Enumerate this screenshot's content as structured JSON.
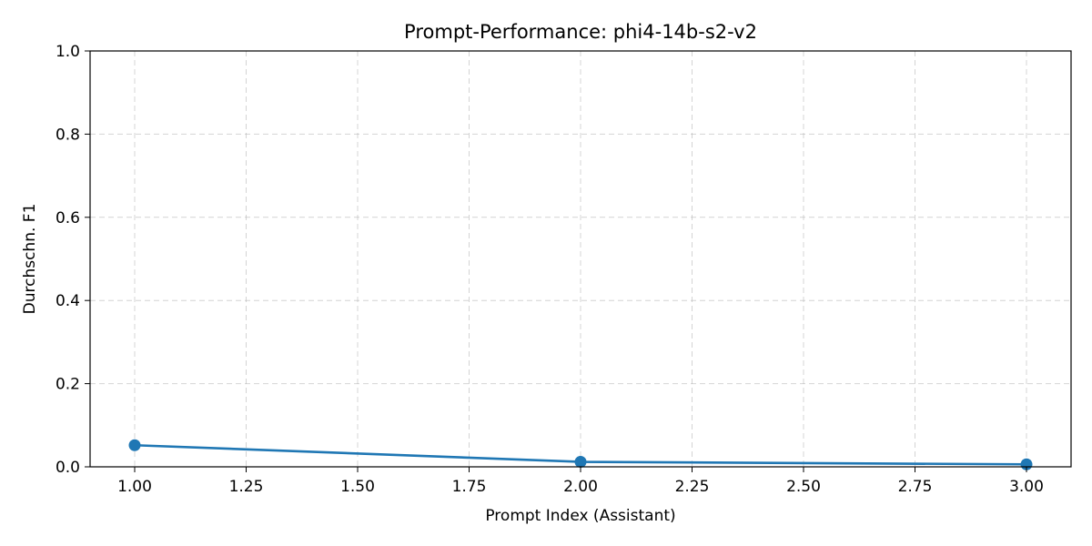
{
  "chart_data": {
    "type": "line",
    "title": "Prompt-Performance: phi4-14b-s2-v2",
    "xlabel": "Prompt Index (Assistant)",
    "ylabel": "Durchschn. F1",
    "xlim": [
      0.9,
      3.1
    ],
    "ylim": [
      0.0,
      1.0
    ],
    "xticks": [
      "1.00",
      "1.25",
      "1.50",
      "1.75",
      "2.00",
      "2.25",
      "2.50",
      "2.75",
      "3.00"
    ],
    "yticks": [
      "0.0",
      "0.2",
      "0.4",
      "0.6",
      "0.8",
      "1.0"
    ],
    "grid": true,
    "series": [
      {
        "color": "#1f77b4",
        "marker": "circle",
        "x": [
          1.0,
          2.0,
          3.0
        ],
        "y": [
          0.052,
          0.012,
          0.006
        ]
      }
    ]
  }
}
